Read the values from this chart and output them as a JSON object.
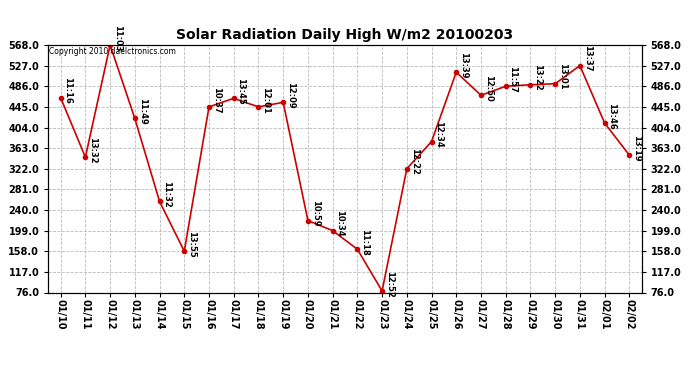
{
  "title": "Solar Radiation Daily High W/m2 20100203",
  "copyright": "Copyright 2010 daelctronics.com",
  "dates": [
    "01/10",
    "01/11",
    "01/12",
    "01/13",
    "01/14",
    "01/15",
    "01/16",
    "01/17",
    "01/18",
    "01/19",
    "01/20",
    "01/21",
    "01/22",
    "01/23",
    "01/24",
    "01/25",
    "01/26",
    "01/27",
    "01/28",
    "01/29",
    "01/30",
    "01/31",
    "02/01",
    "02/02"
  ],
  "values": [
    463,
    345,
    568,
    422,
    257,
    158,
    445,
    462,
    445,
    454,
    219,
    199,
    162,
    79,
    322,
    376,
    514,
    468,
    486,
    489,
    491,
    527,
    413,
    349
  ],
  "labels": [
    "11:16",
    "13:32",
    "11:03",
    "11:49",
    "11:32",
    "13:55",
    "10:37",
    "13:45",
    "12:01",
    "12:09",
    "10:59",
    "10:34",
    "11:18",
    "12:52",
    "12:22",
    "12:34",
    "13:39",
    "12:50",
    "11:57",
    "13:22",
    "13:01",
    "13:37",
    "13:46",
    "13:19"
  ],
  "line_color": "#cc0000",
  "marker_color": "#cc0000",
  "background_color": "#ffffff",
  "grid_color": "#bbbbbb",
  "ylim_min": 76.0,
  "ylim_max": 568.0,
  "yticks": [
    76.0,
    117.0,
    158.0,
    199.0,
    240.0,
    281.0,
    322.0,
    363.0,
    404.0,
    445.0,
    486.0,
    527.0,
    568.0
  ]
}
